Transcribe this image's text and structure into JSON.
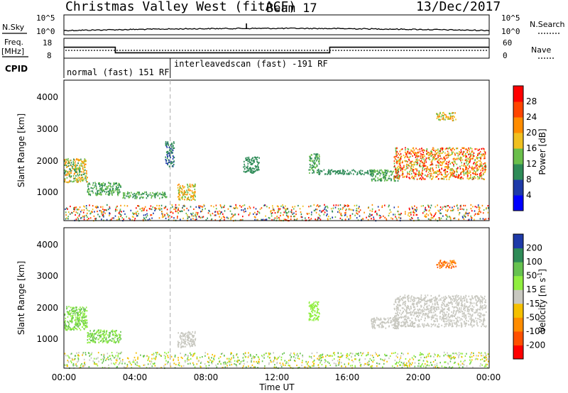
{
  "header": {
    "title": "Christmas Valley West (fitACF)",
    "beam": "Beam 17",
    "date": "13/Dec/2017"
  },
  "noise_panel": {
    "left_label": "N.Sky",
    "left_ticks": [
      "10^5",
      "10^0"
    ],
    "right_ticks": [
      "10^5",
      "10^0"
    ],
    "right_label": "N.Search"
  },
  "freq_panel": {
    "left_label_1": "Freq.",
    "left_label_2": "[MHz]",
    "left_ticks": [
      "18",
      "8"
    ],
    "right_ticks": [
      "60",
      "0"
    ],
    "right_label": "Nave"
  },
  "cpid": {
    "label": "CPID",
    "segments": [
      {
        "text": "normal (fast) 151 RF",
        "start_hour": 0,
        "end_hour": 6
      },
      {
        "text": "interleavedscan (fast) -191 RF",
        "start_hour": 6,
        "end_hour": 24
      }
    ]
  },
  "axes": {
    "ylabel": "Slant Range [km]",
    "xlabel": "Time UT",
    "yticks": [
      "1000",
      "2000",
      "3000",
      "4000"
    ],
    "xticks": [
      "00:00",
      "04:00",
      "08:00",
      "12:00",
      "16:00",
      "20:00",
      "00:00"
    ]
  },
  "colorbars": {
    "power": {
      "label": "Power [dB]",
      "ticks": [
        "4",
        "8",
        "12",
        "16",
        "20",
        "24",
        "28"
      ],
      "colors": [
        "#0000ff",
        "#1e3aa8",
        "#2e8b57",
        "#6abf4b",
        "#f0c020",
        "#ff8c00",
        "#ff4500",
        "#ff0000"
      ]
    },
    "velocity": {
      "label": "Velocity [m s",
      "label_sup": "-1",
      "label_end": "]",
      "ticks": [
        "200",
        "100",
        "50",
        "15",
        "-15",
        "-50",
        "-100",
        "-200"
      ],
      "colors": [
        "#1e3aa8",
        "#2e8b57",
        "#66c24f",
        "#90ee40",
        "#c8c8c0",
        "#f5c000",
        "#ff8c00",
        "#ff5000",
        "#ff0000"
      ]
    }
  },
  "chart_data": {
    "type": "heatmap",
    "title": "Christmas Valley West (fitACF)",
    "xlabel": "Time UT",
    "ylabel": "Slant Range [km]",
    "xlim": [
      0,
      24
    ],
    "ylim": [
      180,
      4600
    ],
    "x_unit": "hours UT",
    "frequency_mhz": {
      "x": [
        0,
        2.9,
        2.9,
        15,
        15,
        24
      ],
      "y": [
        13.5,
        13.5,
        10.7,
        10.7,
        13.5,
        13.5
      ]
    },
    "noise_marker_hour": 10.3,
    "power_blobs": [
      {
        "t0": 0.0,
        "t1": 1.3,
        "r0": 1400,
        "r1": 2150,
        "values": [
          8,
          12,
          16,
          20
        ]
      },
      {
        "t0": 1.3,
        "t1": 3.2,
        "r0": 1000,
        "r1": 1400,
        "values": [
          8,
          12
        ]
      },
      {
        "t0": 3.3,
        "t1": 5.8,
        "r0": 900,
        "r1": 1100,
        "values": [
          8,
          12
        ]
      },
      {
        "t0": 5.7,
        "t1": 6.2,
        "r0": 1900,
        "r1": 2700,
        "values": [
          4,
          8
        ]
      },
      {
        "t0": 6.4,
        "t1": 7.4,
        "r0": 850,
        "r1": 1350,
        "values": [
          12,
          16,
          20
        ]
      },
      {
        "t0": 0.0,
        "t1": 24.0,
        "r0": 200,
        "r1": 700,
        "values": [
          4,
          8,
          12,
          16,
          20,
          24,
          28
        ]
      },
      {
        "t0": 10.1,
        "t1": 11.0,
        "r0": 1700,
        "r1": 2200,
        "values": [
          8
        ]
      },
      {
        "t0": 13.8,
        "t1": 14.4,
        "r0": 1700,
        "r1": 2300,
        "values": [
          8,
          12
        ]
      },
      {
        "t0": 14.3,
        "t1": 17.5,
        "r0": 1650,
        "r1": 1800,
        "values": [
          8
        ]
      },
      {
        "t0": 17.3,
        "t1": 18.9,
        "r0": 1450,
        "r1": 1800,
        "values": [
          8,
          12
        ]
      },
      {
        "t0": 18.6,
        "t1": 23.8,
        "r0": 1500,
        "r1": 2500,
        "values": [
          12,
          16,
          20,
          24,
          28
        ]
      },
      {
        "t0": 21.0,
        "t1": 22.1,
        "r0": 3350,
        "r1": 3600,
        "values": [
          12,
          16,
          20
        ]
      }
    ],
    "velocity_blobs": [
      {
        "t0": 0.0,
        "t1": 1.3,
        "r0": 1400,
        "r1": 2150,
        "values": [
          15,
          50
        ]
      },
      {
        "t0": 1.3,
        "t1": 3.2,
        "r0": 1000,
        "r1": 1400,
        "values": [
          15,
          50
        ]
      },
      {
        "t0": 6.4,
        "t1": 7.4,
        "r0": 850,
        "r1": 1350,
        "values": [
          -15
        ]
      },
      {
        "t0": 0.0,
        "t1": 24.0,
        "r0": 200,
        "r1": 700,
        "values": [
          -15,
          -50,
          15,
          50
        ]
      },
      {
        "t0": 13.8,
        "t1": 14.4,
        "r0": 1700,
        "r1": 2300,
        "values": [
          15
        ]
      },
      {
        "t0": 17.3,
        "t1": 18.9,
        "r0": 1450,
        "r1": 1800,
        "values": [
          -15
        ]
      },
      {
        "t0": 18.6,
        "t1": 23.8,
        "r0": 1500,
        "r1": 2500,
        "values": [
          -15
        ]
      },
      {
        "t0": 21.0,
        "t1": 22.1,
        "r0": 3350,
        "r1": 3600,
        "values": [
          -200,
          -100
        ]
      }
    ]
  }
}
